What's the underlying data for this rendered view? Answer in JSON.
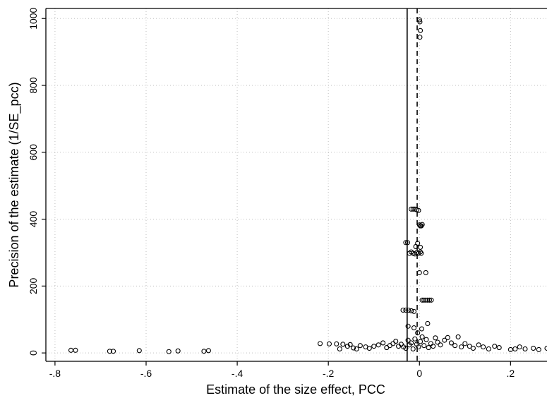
{
  "chart_data": {
    "type": "scatter",
    "title": "",
    "xlabel": "Estimate of the size effect, PCC",
    "ylabel": "Precision of the estimate (1/SE_pcc)",
    "xlim": [
      -0.82,
      0.28
    ],
    "ylim": [
      -25,
      1030
    ],
    "xticks": [
      -0.8,
      -0.6,
      -0.4,
      -0.2,
      0,
      0.2
    ],
    "xtick_labels": [
      "-.8",
      "-.6",
      "-.4",
      "-.2",
      "0",
      ".2"
    ],
    "yticks": [
      0,
      200,
      400,
      600,
      800,
      1000
    ],
    "ytick_labels": [
      "0",
      "200",
      "400",
      "600",
      "800",
      "1000"
    ],
    "grid": true,
    "legend": "none",
    "reference_lines": [
      {
        "style": "solid",
        "x": -0.027
      },
      {
        "style": "dashed",
        "x": -0.005
      }
    ],
    "points": [
      [
        -0.765,
        8
      ],
      [
        -0.755,
        8
      ],
      [
        -0.68,
        5
      ],
      [
        -0.672,
        5
      ],
      [
        -0.615,
        7
      ],
      [
        -0.55,
        4
      ],
      [
        -0.53,
        6
      ],
      [
        -0.473,
        5
      ],
      [
        -0.463,
        7
      ],
      [
        -0.218,
        28
      ],
      [
        -0.198,
        27
      ],
      [
        -0.182,
        27
      ],
      [
        -0.175,
        12
      ],
      [
        -0.168,
        26
      ],
      [
        -0.158,
        20
      ],
      [
        -0.152,
        25
      ],
      [
        -0.145,
        15
      ],
      [
        -0.138,
        12
      ],
      [
        -0.13,
        22
      ],
      [
        -0.118,
        18
      ],
      [
        -0.11,
        14
      ],
      [
        -0.1,
        20
      ],
      [
        -0.09,
        24
      ],
      [
        -0.08,
        30
      ],
      [
        -0.072,
        16
      ],
      [
        -0.065,
        22
      ],
      [
        -0.058,
        28
      ],
      [
        -0.052,
        35
      ],
      [
        -0.046,
        20
      ],
      [
        -0.04,
        26
      ],
      [
        -0.035,
        18
      ],
      [
        -0.03,
        14
      ],
      [
        -0.025,
        38
      ],
      [
        -0.022,
        24
      ],
      [
        -0.018,
        30
      ],
      [
        -0.014,
        12
      ],
      [
        -0.01,
        42
      ],
      [
        -0.006,
        26
      ],
      [
        -0.002,
        18
      ],
      [
        0.002,
        34
      ],
      [
        0.006,
        48
      ],
      [
        0.01,
        22
      ],
      [
        0.015,
        40
      ],
      [
        0.02,
        16
      ],
      [
        0.025,
        28
      ],
      [
        0.03,
        20
      ],
      [
        0.035,
        45
      ],
      [
        0.04,
        32
      ],
      [
        0.046,
        24
      ],
      [
        0.055,
        38
      ],
      [
        0.062,
        46
      ],
      [
        0.07,
        30
      ],
      [
        0.078,
        22
      ],
      [
        0.085,
        48
      ],
      [
        0.092,
        18
      ],
      [
        0.1,
        28
      ],
      [
        0.11,
        20
      ],
      [
        0.118,
        14
      ],
      [
        0.13,
        24
      ],
      [
        0.14,
        18
      ],
      [
        0.152,
        12
      ],
      [
        0.165,
        20
      ],
      [
        0.175,
        16
      ],
      [
        0.2,
        10
      ],
      [
        0.21,
        12
      ],
      [
        0.22,
        18
      ],
      [
        0.232,
        12
      ],
      [
        0.25,
        14
      ],
      [
        0.262,
        10
      ],
      [
        0.28,
        14
      ],
      [
        -0.03,
        330
      ],
      [
        -0.026,
        330
      ],
      [
        -0.022,
        298
      ],
      [
        -0.018,
        302
      ],
      [
        -0.014,
        298
      ],
      [
        -0.01,
        296
      ],
      [
        -0.006,
        300
      ],
      [
        -0.002,
        298
      ],
      [
        0.002,
        302
      ],
      [
        -0.008,
        318
      ],
      [
        -0.004,
        328
      ],
      [
        0.002,
        316
      ],
      [
        0.004,
        298
      ],
      [
        -0.018,
        430
      ],
      [
        -0.014,
        430
      ],
      [
        -0.01,
        430
      ],
      [
        -0.006,
        428
      ],
      [
        -0.002,
        426
      ],
      [
        0.0,
        383
      ],
      [
        0.002,
        380
      ],
      [
        0.004,
        380
      ],
      [
        0.006,
        384
      ],
      [
        0.0,
        996
      ],
      [
        0.001,
        990
      ],
      [
        0.002,
        964
      ],
      [
        0.001,
        944
      ],
      [
        -0.036,
        128
      ],
      [
        -0.03,
        128
      ],
      [
        -0.024,
        128
      ],
      [
        -0.018,
        126
      ],
      [
        -0.012,
        124
      ],
      [
        0.006,
        158
      ],
      [
        0.01,
        158
      ],
      [
        0.014,
        158
      ],
      [
        0.018,
        158
      ],
      [
        0.022,
        158
      ],
      [
        0.026,
        158
      ],
      [
        0.0,
        240
      ],
      [
        0.014,
        240
      ],
      [
        -0.025,
        80
      ],
      [
        -0.012,
        75
      ],
      [
        0.005,
        72
      ],
      [
        0.018,
        88
      ],
      [
        -0.004,
        60
      ]
    ]
  }
}
